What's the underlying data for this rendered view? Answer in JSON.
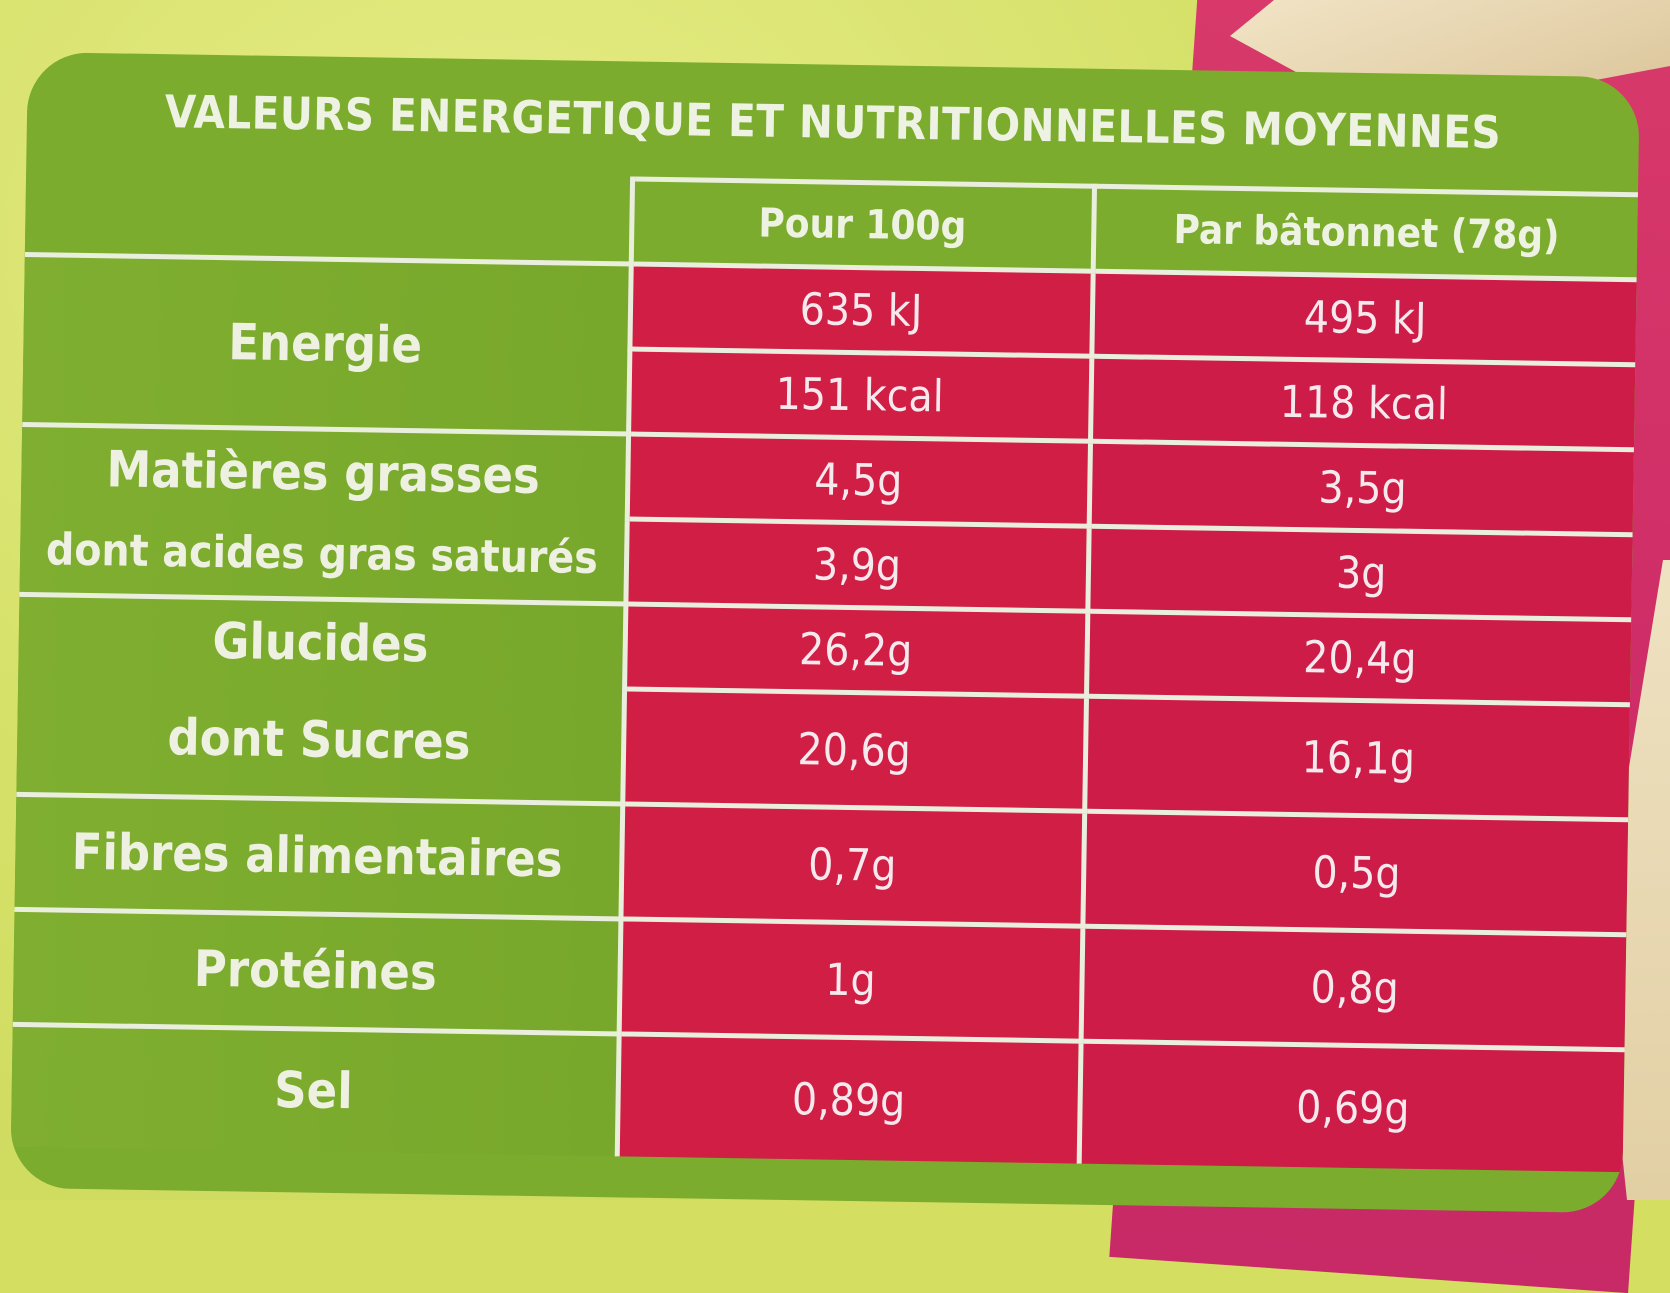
{
  "colors": {
    "green": "#7bac2e",
    "red": "#d01e45",
    "pink_background": "#cf2d67",
    "yellow_background": "#d4df62",
    "border": "#e9eedd"
  },
  "table": {
    "title": "VALEURS ENERGETIQUE ET NUTRITIONNELLES MOYENNES",
    "headers": [
      "Pour 100g",
      "Par bâtonnet (78g)"
    ],
    "energy": {
      "label": "Energie",
      "kj": [
        "635 kJ",
        "495 kJ"
      ],
      "kcal": [
        "151 kcal",
        "118 kcal"
      ]
    },
    "fat": {
      "label": "Matières grasses",
      "values": [
        "4,5g",
        "3,5g"
      ]
    },
    "saturated": {
      "label": "dont acides gras saturés",
      "values": [
        "3,9g",
        "3g"
      ]
    },
    "carbs": {
      "label": "Glucides",
      "values": [
        "26,2g",
        "20,4g"
      ]
    },
    "sugars": {
      "label": "dont Sucres",
      "values": [
        "20,6g",
        "16,1g"
      ]
    },
    "fibre": {
      "label": "Fibres alimentaires",
      "values": [
        "0,7g",
        "0,5g"
      ]
    },
    "protein": {
      "label": "Protéines",
      "values": [
        "1g",
        "0,8g"
      ]
    },
    "salt": {
      "label": "Sel",
      "values": [
        "0,89g",
        "0,69g"
      ]
    }
  }
}
